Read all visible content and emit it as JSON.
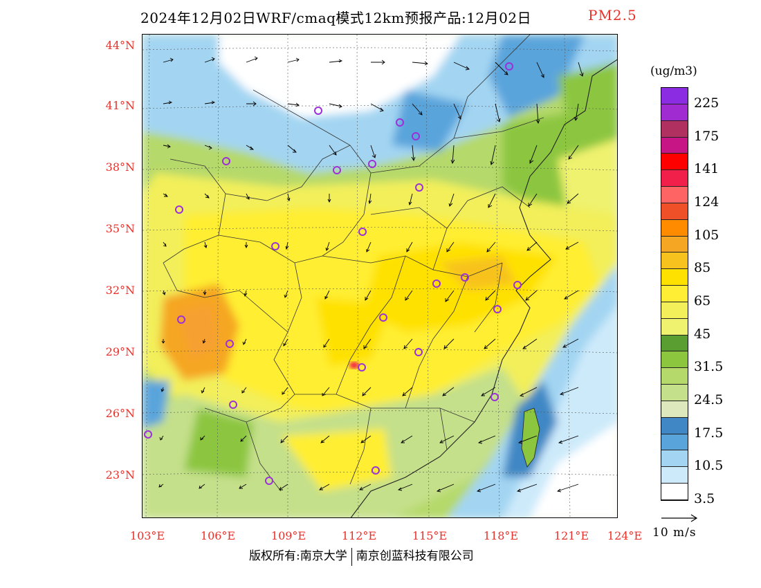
{
  "title": {
    "main": "2024年12月02日WRF/cmaq模式12km预报产品:12月02日",
    "pollutant": "PM2.5"
  },
  "map": {
    "lat_labels": [
      "44°N",
      "41°N",
      "38°N",
      "35°N",
      "32°N",
      "29°N",
      "26°N",
      "23°N"
    ],
    "lon_labels": [
      "103°E",
      "106°E",
      "109°E",
      "112°E",
      "115°E",
      "118°E",
      "121°E",
      "124°E"
    ],
    "station_marker_color": "#9b30d9"
  },
  "legend": {
    "unit": "(ug/m3)",
    "colors": [
      "#8b2be2",
      "#a02bd0",
      "#b03060",
      "#c71585",
      "#ff0000",
      "#f0204a",
      "#ff6464",
      "#f05028",
      "#ff8c00",
      "#f5a623",
      "#f7c21e",
      "#ffe100",
      "#ffee33",
      "#f2ef5a",
      "#eff26e",
      "#5a9e32",
      "#8cc63f",
      "#b5d96b",
      "#c5e08a",
      "#dde8bd",
      "#3f88c5",
      "#5aa4dc",
      "#a3d5f2",
      "#cdeafa",
      "#ffffff"
    ],
    "labels": [
      "225",
      "175",
      "141",
      "124",
      "105",
      "85",
      "65",
      "45",
      "31.5",
      "24.5",
      "17.5",
      "10.5",
      "3.5"
    ]
  },
  "scale": {
    "label": "10 m/s"
  },
  "footer": {
    "left": "版权所有:南京大学",
    "right": "南京创蓝科技有限公司"
  }
}
